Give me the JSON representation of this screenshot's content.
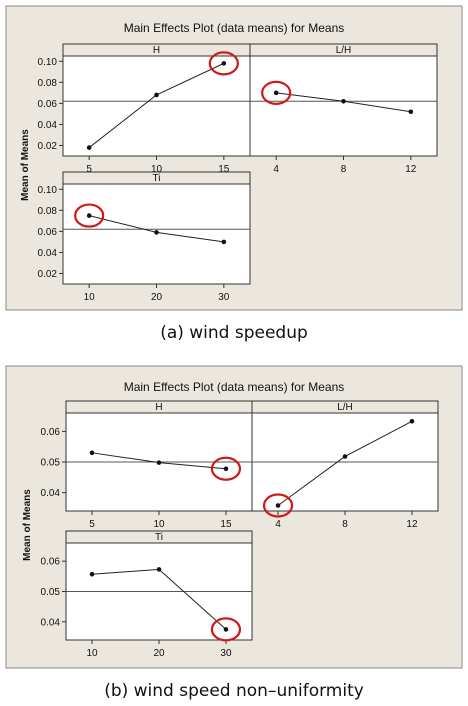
{
  "chart_data": [
    {
      "type": "line",
      "title": "Main Effects Plot (data means) for Means",
      "ylabel": "Mean of Means",
      "caption": "(a)  wind  speedup",
      "grand_mean": 0.062,
      "ylim": [
        0.01,
        0.105
      ],
      "yticks": [
        "0.02",
        "0.04",
        "0.06",
        "0.08",
        "0.10"
      ],
      "ytick_values": [
        0.02,
        0.04,
        0.06,
        0.08,
        0.1
      ],
      "panels": [
        {
          "name": "H",
          "categories": [
            "5",
            "10",
            "15"
          ],
          "values": [
            0.018,
            0.068,
            0.098
          ],
          "highlight_index": 2
        },
        {
          "name": "L/H",
          "categories": [
            "4",
            "8",
            "12"
          ],
          "values": [
            0.07,
            0.062,
            0.052
          ],
          "highlight_index": 0
        },
        {
          "name": "Ti",
          "categories": [
            "10",
            "20",
            "30"
          ],
          "values": [
            0.075,
            0.059,
            0.05
          ],
          "highlight_index": 0
        }
      ]
    },
    {
      "type": "line",
      "title": "Main Effects Plot (data means) for Means",
      "ylabel": "Mean of Means",
      "caption": "(b)  wind  speed  non–uniformity",
      "grand_mean": 0.05,
      "ylim": [
        0.034,
        0.066
      ],
      "yticks": [
        "0.04",
        "0.05",
        "0.06"
      ],
      "ytick_values": [
        0.04,
        0.05,
        0.06
      ],
      "panels": [
        {
          "name": "H",
          "categories": [
            "5",
            "10",
            "15"
          ],
          "values": [
            0.053,
            0.0498,
            0.0478
          ],
          "highlight_index": 2
        },
        {
          "name": "L/H",
          "categories": [
            "4",
            "8",
            "12"
          ],
          "values": [
            0.0358,
            0.0518,
            0.0633
          ],
          "highlight_index": 0
        },
        {
          "name": "Ti",
          "categories": [
            "10",
            "20",
            "30"
          ],
          "values": [
            0.0557,
            0.0573,
            0.0375
          ],
          "highlight_index": 2
        }
      ]
    }
  ]
}
